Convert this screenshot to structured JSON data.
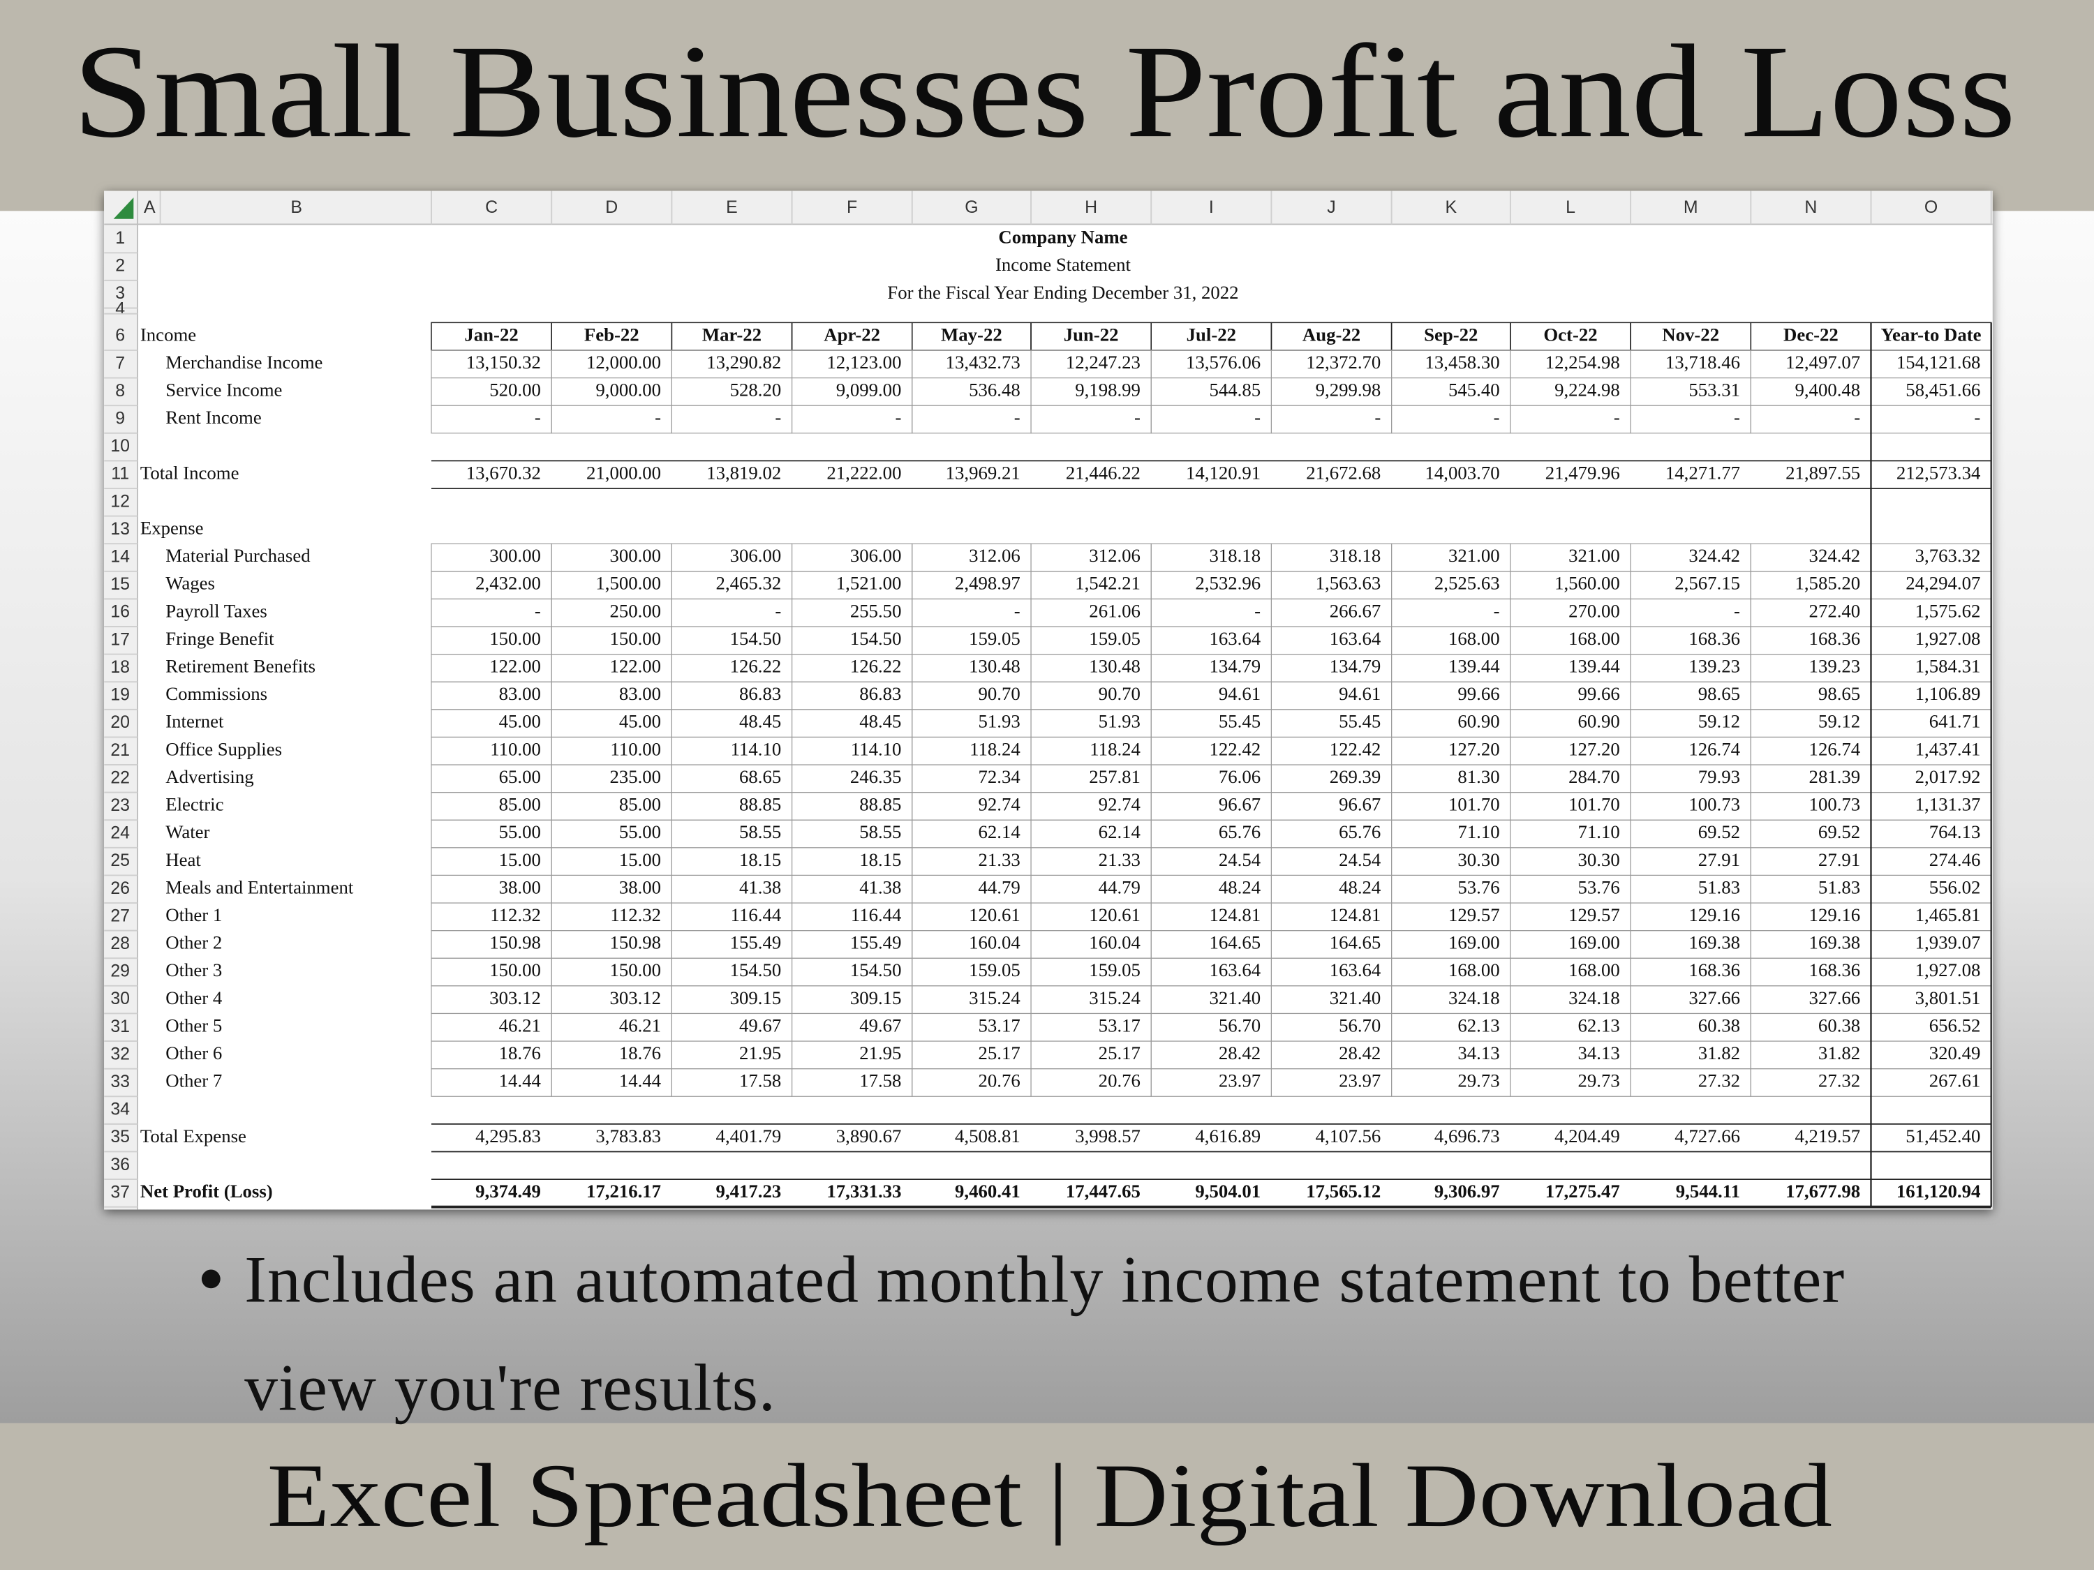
{
  "header": {
    "title": "Small Businesses Profit and Loss"
  },
  "sheet": {
    "column_letters": [
      "A",
      "B",
      "C",
      "D",
      "E",
      "F",
      "G",
      "H",
      "I",
      "J",
      "K",
      "L",
      "M",
      "N",
      "O"
    ],
    "columns": [
      "Jan-22",
      "Feb-22",
      "Mar-22",
      "Apr-22",
      "May-22",
      "Jun-22",
      "Jul-22",
      "Aug-22",
      "Sep-22",
      "Oct-22",
      "Nov-22",
      "Dec-22",
      "Year-to Date"
    ],
    "rows": [
      {
        "number": 1,
        "title": "Company Name",
        "style": "bold"
      },
      {
        "number": 2,
        "title": "Income Statement"
      },
      {
        "number": 3,
        "title": "For the Fiscal Year Ending December 31, 2022"
      },
      {
        "number": 4
      },
      {
        "number": 6,
        "label": "Income",
        "style": "header"
      },
      {
        "number": 7,
        "label": "Merchandise Income",
        "style": "item",
        "cells": [
          "13,150.32",
          "12,000.00",
          "13,290.82",
          "12,123.00",
          "13,432.73",
          "12,247.23",
          "13,576.06",
          "12,372.70",
          "13,458.30",
          "12,254.98",
          "13,718.46",
          "12,497.07",
          "154,121.68"
        ]
      },
      {
        "number": 8,
        "label": "Service Income",
        "style": "item",
        "cells": [
          "520.00",
          "9,000.00",
          "528.20",
          "9,099.00",
          "536.48",
          "9,198.99",
          "544.85",
          "9,299.98",
          "545.40",
          "9,224.98",
          "553.31",
          "9,400.48",
          "58,451.66"
        ]
      },
      {
        "number": 9,
        "label": "Rent Income",
        "style": "item",
        "cells": [
          "-",
          "-",
          "-",
          "-",
          "-",
          "-",
          "-",
          "-",
          "-",
          "-",
          "-",
          "-",
          "-"
        ]
      },
      {
        "number": 10
      },
      {
        "number": 11,
        "label": "Total Income",
        "style": "total",
        "cells": [
          "13,670.32",
          "21,000.00",
          "13,819.02",
          "21,222.00",
          "13,969.21",
          "21,446.22",
          "14,120.91",
          "21,672.68",
          "14,003.70",
          "21,479.96",
          "14,271.77",
          "21,897.55",
          "212,573.34"
        ]
      },
      {
        "number": 12
      },
      {
        "number": 13,
        "label": "Expense",
        "style": "section"
      },
      {
        "number": 14,
        "label": "Material Purchased",
        "style": "item",
        "cells": [
          "300.00",
          "300.00",
          "306.00",
          "306.00",
          "312.06",
          "312.06",
          "318.18",
          "318.18",
          "321.00",
          "321.00",
          "324.42",
          "324.42",
          "3,763.32"
        ]
      },
      {
        "number": 15,
        "label": "Wages",
        "style": "item",
        "cells": [
          "2,432.00",
          "1,500.00",
          "2,465.32",
          "1,521.00",
          "2,498.97",
          "1,542.21",
          "2,532.96",
          "1,563.63",
          "2,525.63",
          "1,560.00",
          "2,567.15",
          "1,585.20",
          "24,294.07"
        ]
      },
      {
        "number": 16,
        "label": "Payroll Taxes",
        "style": "item",
        "cells": [
          "-",
          "250.00",
          "-",
          "255.50",
          "-",
          "261.06",
          "-",
          "266.67",
          "-",
          "270.00",
          "-",
          "272.40",
          "1,575.62"
        ]
      },
      {
        "number": 17,
        "label": "Fringe Benefit",
        "style": "item",
        "cells": [
          "150.00",
          "150.00",
          "154.50",
          "154.50",
          "159.05",
          "159.05",
          "163.64",
          "163.64",
          "168.00",
          "168.00",
          "168.36",
          "168.36",
          "1,927.08"
        ]
      },
      {
        "number": 18,
        "label": "Retirement Benefits",
        "style": "item",
        "cells": [
          "122.00",
          "122.00",
          "126.22",
          "126.22",
          "130.48",
          "130.48",
          "134.79",
          "134.79",
          "139.44",
          "139.44",
          "139.23",
          "139.23",
          "1,584.31"
        ]
      },
      {
        "number": 19,
        "label": "Commissions",
        "style": "item",
        "cells": [
          "83.00",
          "83.00",
          "86.83",
          "86.83",
          "90.70",
          "90.70",
          "94.61",
          "94.61",
          "99.66",
          "99.66",
          "98.65",
          "98.65",
          "1,106.89"
        ]
      },
      {
        "number": 20,
        "label": "Internet",
        "style": "item",
        "cells": [
          "45.00",
          "45.00",
          "48.45",
          "48.45",
          "51.93",
          "51.93",
          "55.45",
          "55.45",
          "60.90",
          "60.90",
          "59.12",
          "59.12",
          "641.71"
        ]
      },
      {
        "number": 21,
        "label": "Office Supplies",
        "style": "item",
        "cells": [
          "110.00",
          "110.00",
          "114.10",
          "114.10",
          "118.24",
          "118.24",
          "122.42",
          "122.42",
          "127.20",
          "127.20",
          "126.74",
          "126.74",
          "1,437.41"
        ]
      },
      {
        "number": 22,
        "label": "Advertising",
        "style": "item",
        "cells": [
          "65.00",
          "235.00",
          "68.65",
          "246.35",
          "72.34",
          "257.81",
          "76.06",
          "269.39",
          "81.30",
          "284.70",
          "79.93",
          "281.39",
          "2,017.92"
        ]
      },
      {
        "number": 23,
        "label": "Electric",
        "style": "item",
        "cells": [
          "85.00",
          "85.00",
          "88.85",
          "88.85",
          "92.74",
          "92.74",
          "96.67",
          "96.67",
          "101.70",
          "101.70",
          "100.73",
          "100.73",
          "1,131.37"
        ]
      },
      {
        "number": 24,
        "label": "Water",
        "style": "item",
        "cells": [
          "55.00",
          "55.00",
          "58.55",
          "58.55",
          "62.14",
          "62.14",
          "65.76",
          "65.76",
          "71.10",
          "71.10",
          "69.52",
          "69.52",
          "764.13"
        ]
      },
      {
        "number": 25,
        "label": "Heat",
        "style": "item",
        "cells": [
          "15.00",
          "15.00",
          "18.15",
          "18.15",
          "21.33",
          "21.33",
          "24.54",
          "24.54",
          "30.30",
          "30.30",
          "27.91",
          "27.91",
          "274.46"
        ]
      },
      {
        "number": 26,
        "label": "Meals and Entertainment",
        "style": "item",
        "cells": [
          "38.00",
          "38.00",
          "41.38",
          "41.38",
          "44.79",
          "44.79",
          "48.24",
          "48.24",
          "53.76",
          "53.76",
          "51.83",
          "51.83",
          "556.02"
        ]
      },
      {
        "number": 27,
        "label": "Other 1",
        "style": "item",
        "cells": [
          "112.32",
          "112.32",
          "116.44",
          "116.44",
          "120.61",
          "120.61",
          "124.81",
          "124.81",
          "129.57",
          "129.57",
          "129.16",
          "129.16",
          "1,465.81"
        ]
      },
      {
        "number": 28,
        "label": "Other 2",
        "style": "item",
        "cells": [
          "150.98",
          "150.98",
          "155.49",
          "155.49",
          "160.04",
          "160.04",
          "164.65",
          "164.65",
          "169.00",
          "169.00",
          "169.38",
          "169.38",
          "1,939.07"
        ]
      },
      {
        "number": 29,
        "label": "Other 3",
        "style": "item",
        "cells": [
          "150.00",
          "150.00",
          "154.50",
          "154.50",
          "159.05",
          "159.05",
          "163.64",
          "163.64",
          "168.00",
          "168.00",
          "168.36",
          "168.36",
          "1,927.08"
        ]
      },
      {
        "number": 30,
        "label": "Other 4",
        "style": "item",
        "cells": [
          "303.12",
          "303.12",
          "309.15",
          "309.15",
          "315.24",
          "315.24",
          "321.40",
          "321.40",
          "324.18",
          "324.18",
          "327.66",
          "327.66",
          "3,801.51"
        ]
      },
      {
        "number": 31,
        "label": "Other 5",
        "style": "item",
        "cells": [
          "46.21",
          "46.21",
          "49.67",
          "49.67",
          "53.17",
          "53.17",
          "56.70",
          "56.70",
          "62.13",
          "62.13",
          "60.38",
          "60.38",
          "656.52"
        ]
      },
      {
        "number": 32,
        "label": "Other 6",
        "style": "item",
        "cells": [
          "18.76",
          "18.76",
          "21.95",
          "21.95",
          "25.17",
          "25.17",
          "28.42",
          "28.42",
          "34.13",
          "34.13",
          "31.82",
          "31.82",
          "320.49"
        ]
      },
      {
        "number": 33,
        "label": "Other 7",
        "style": "item",
        "cells": [
          "14.44",
          "14.44",
          "17.58",
          "17.58",
          "20.76",
          "20.76",
          "23.97",
          "23.97",
          "29.73",
          "29.73",
          "27.32",
          "27.32",
          "267.61"
        ]
      },
      {
        "number": 34
      },
      {
        "number": 35,
        "label": "Total Expense",
        "style": "total",
        "cells": [
          "4,295.83",
          "3,783.83",
          "4,401.79",
          "3,890.67",
          "4,508.81",
          "3,998.57",
          "4,616.89",
          "4,107.56",
          "4,696.73",
          "4,204.49",
          "4,727.66",
          "4,219.57",
          "51,452.40"
        ]
      },
      {
        "number": 36
      },
      {
        "number": 37,
        "label": "Net Profit (Loss)",
        "style": "net",
        "cells": [
          "9,374.49",
          "17,216.17",
          "9,417.23",
          "17,331.33",
          "9,460.41",
          "17,447.65",
          "9,504.01",
          "17,565.12",
          "9,306.97",
          "17,275.47",
          "9,544.11",
          "17,677.98",
          "161,120.94"
        ]
      }
    ]
  },
  "bullet": "Includes an automated monthly income statement to better view you're results.",
  "footer": "Excel Spreadsheet | Digital Download"
}
